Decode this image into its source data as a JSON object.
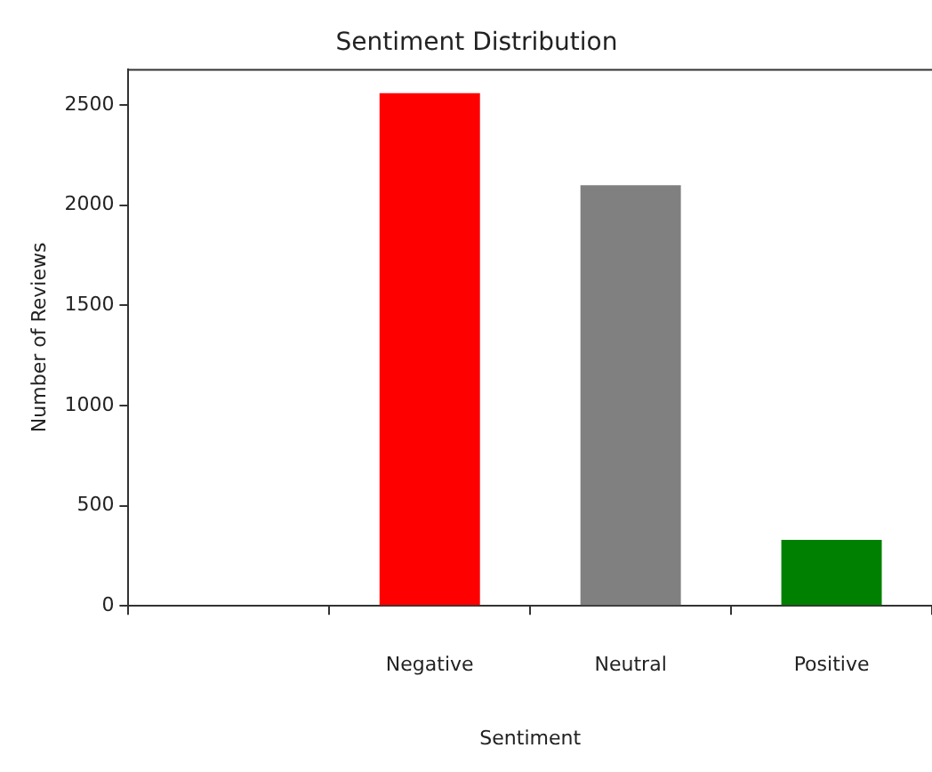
{
  "chart_data": {
    "type": "bar",
    "title": "Sentiment Distribution",
    "xlabel": "Sentiment",
    "ylabel": "Number of Reviews",
    "categories": [
      null,
      "Negative",
      "Neutral",
      "Positive"
    ],
    "values": [
      null,
      2560,
      2100,
      330
    ],
    "colors": [
      "#ff0000",
      "#ff0000",
      "#808080",
      "#008000"
    ],
    "ylim": [
      0,
      2680
    ],
    "yticks": [
      0,
      500,
      1000,
      1500,
      2000,
      2500
    ],
    "grid": false,
    "legend": false
  }
}
